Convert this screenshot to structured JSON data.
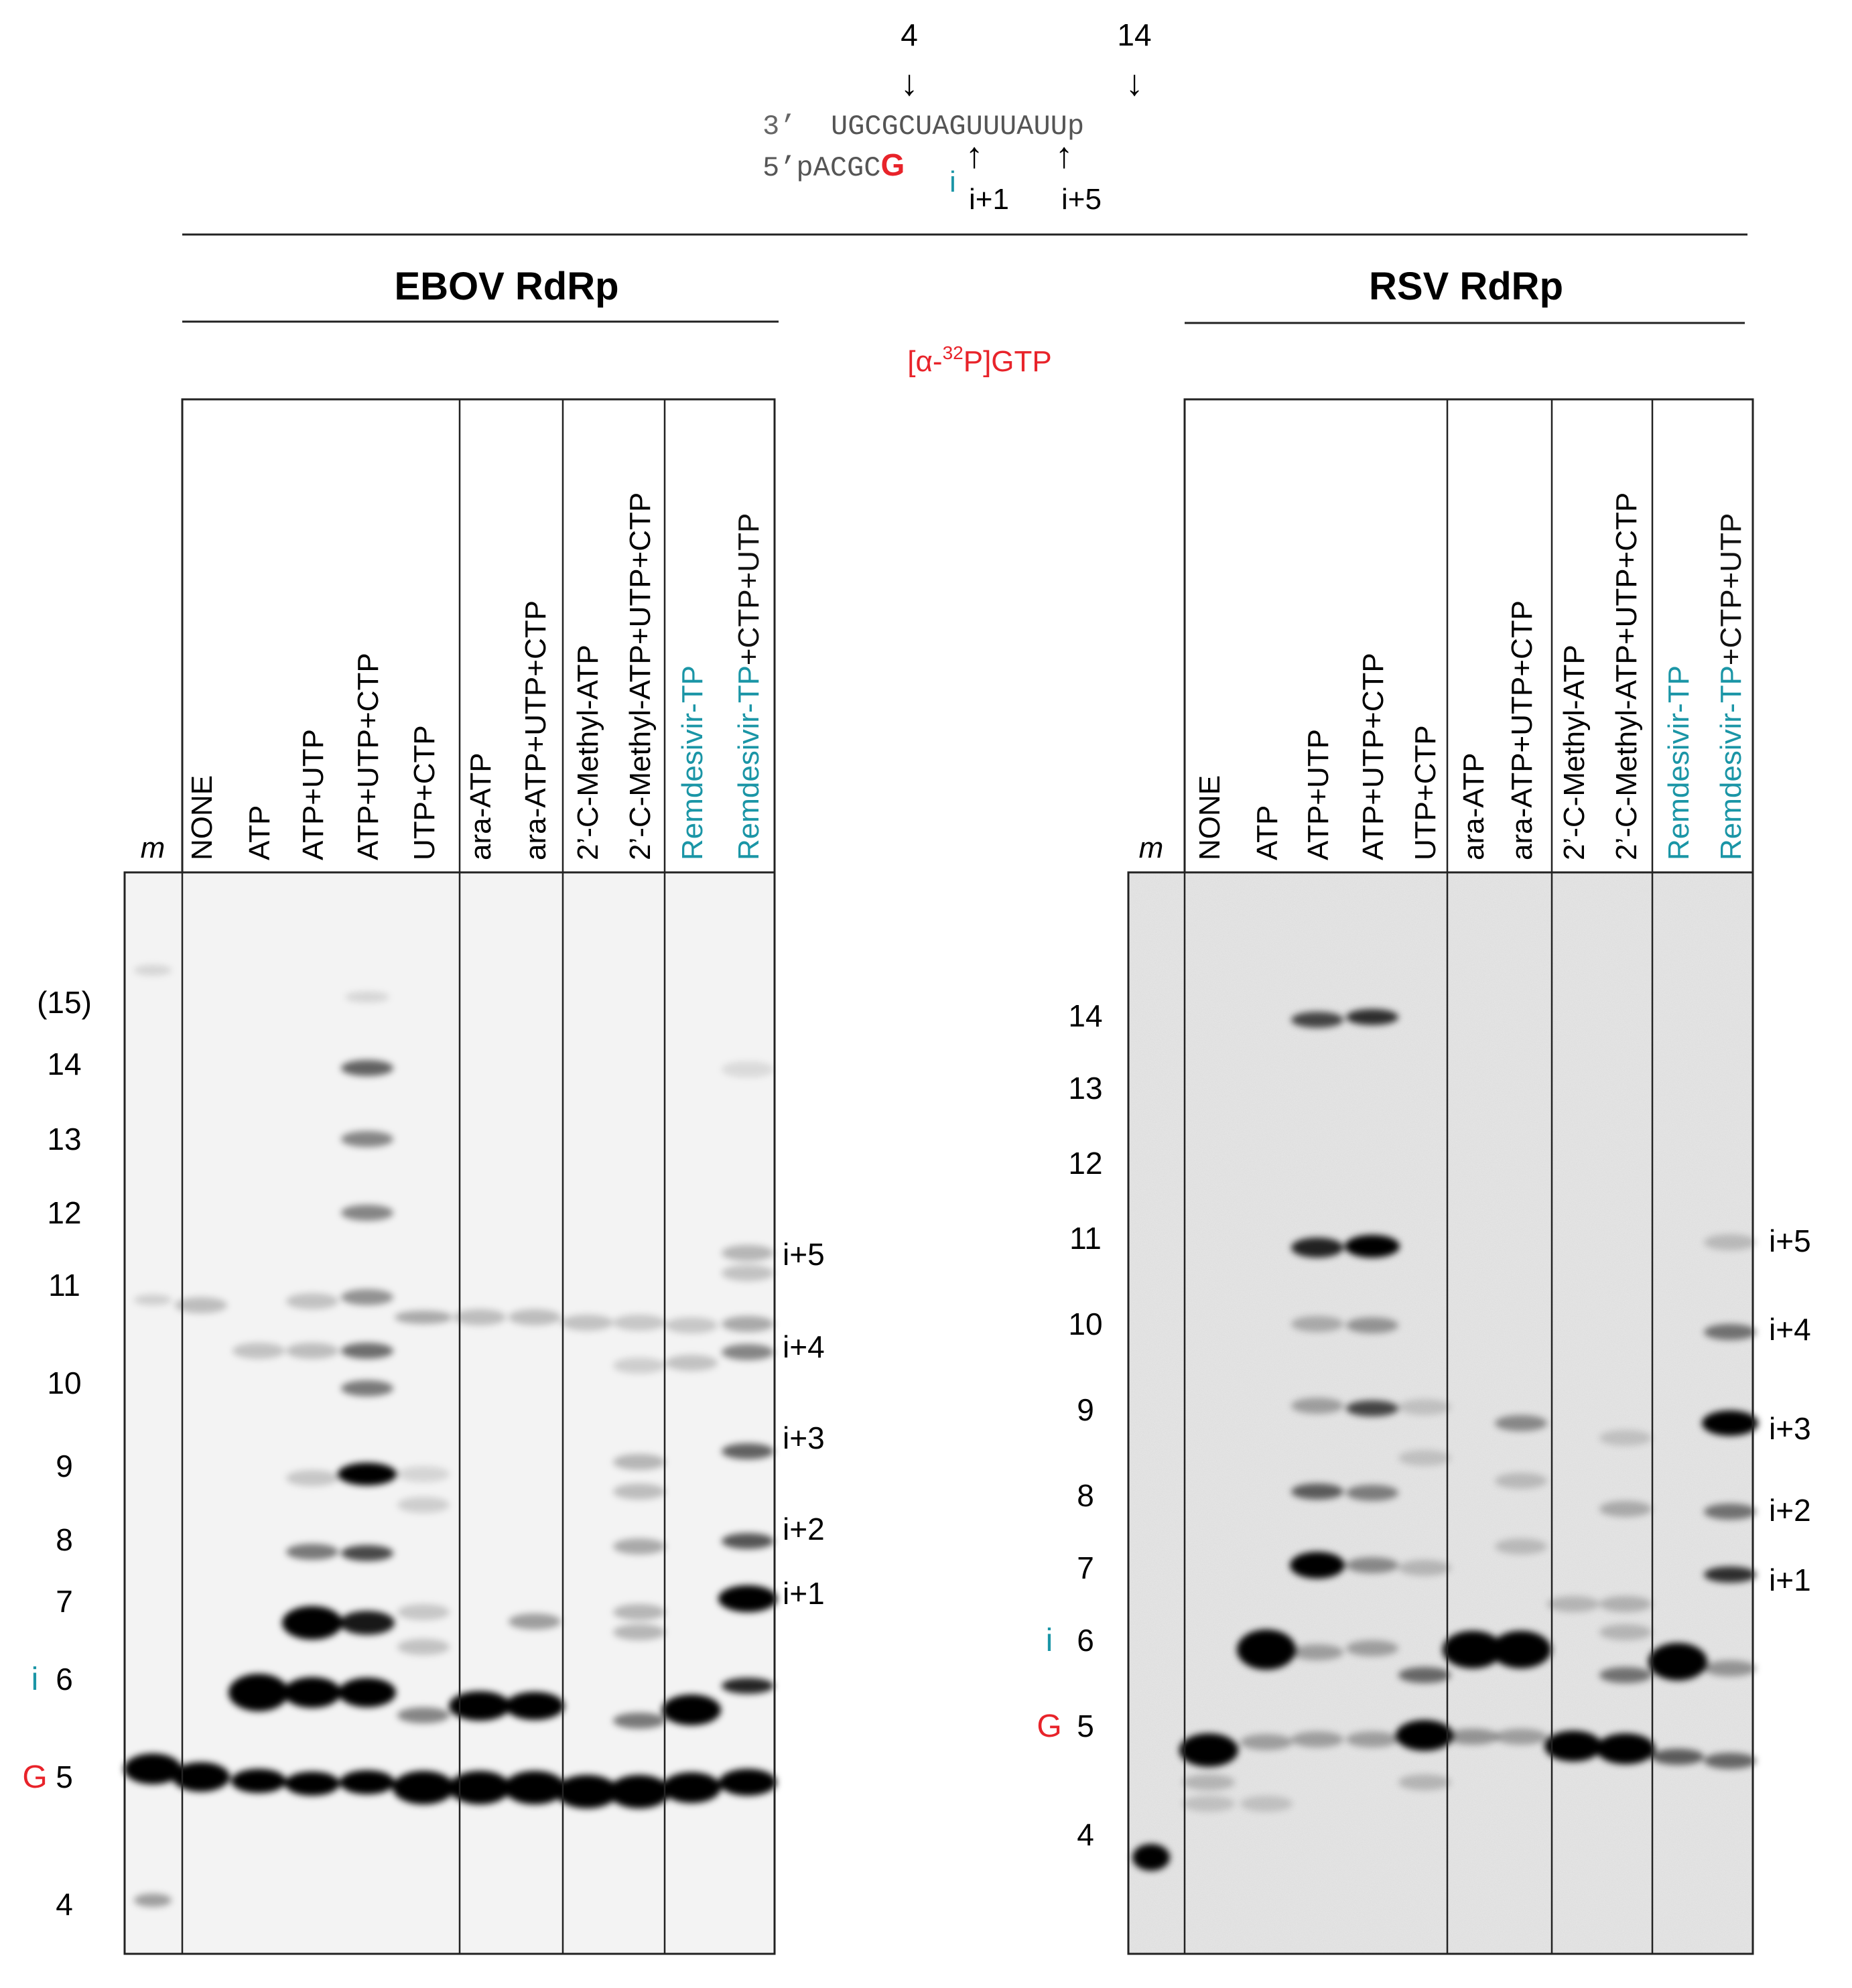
{
  "template": {
    "top_labels": [
      "4",
      "14"
    ],
    "strand3_prefix": "3’",
    "strand3_seq": "UGCGCUAGUUUAUUp",
    "strand5_prefix": "5’pACGC",
    "strand5_g": "G",
    "strand5_i": "i",
    "bottom_labels": [
      "i+1",
      "i+5"
    ]
  },
  "header": {
    "ebov": "EBOV RdRp",
    "rsv": "RSV RdRp",
    "label_pre": "[α-",
    "label_sup": "32",
    "label_post": "P]GTP"
  },
  "gels": {
    "lanes": [
      "m",
      "NONE",
      "ATP",
      "ATP+UTP",
      "ATP+UTP+CTP",
      "UTP+CTP",
      "ara-ATP",
      "ara-ATP+UTP+CTP",
      "2’-C-Methyl-ATP",
      "2’-C-Methyl-ATP+UTP+CTP",
      "Remdesivir-TP",
      "Remdesivir-TP+CTP+UTP"
    ],
    "ebov_markers": [
      {
        "label": "(15)",
        "mark": ""
      },
      {
        "label": "14",
        "mark": ""
      },
      {
        "label": "13",
        "mark": ""
      },
      {
        "label": "12",
        "mark": ""
      },
      {
        "label": "11",
        "mark": ""
      },
      {
        "label": "10",
        "mark": ""
      },
      {
        "label": "9",
        "mark": ""
      },
      {
        "label": "8",
        "mark": ""
      },
      {
        "label": "7",
        "mark": ""
      },
      {
        "label": "6",
        "mark": "i"
      },
      {
        "label": "5",
        "mark": "G"
      },
      {
        "label": "4",
        "mark": ""
      }
    ],
    "rsv_markers": [
      {
        "label": "14",
        "mark": ""
      },
      {
        "label": "13",
        "mark": ""
      },
      {
        "label": "12",
        "mark": ""
      },
      {
        "label": "11",
        "mark": ""
      },
      {
        "label": "10",
        "mark": ""
      },
      {
        "label": "9",
        "mark": ""
      },
      {
        "label": "8",
        "mark": ""
      },
      {
        "label": "7",
        "mark": ""
      },
      {
        "label": "6",
        "mark": "i"
      },
      {
        "label": "5",
        "mark": "G"
      },
      {
        "label": "4",
        "mark": ""
      }
    ],
    "right_labels": [
      "i+5",
      "i+4",
      "i+3",
      "i+2",
      "i+1"
    ]
  },
  "colors": {
    "red": "#e8232a",
    "teal": "#1a95a6",
    "ink": "#111111",
    "gel_ebov": "#f3f3f3",
    "gel_rsv": "#e8e8e8"
  }
}
